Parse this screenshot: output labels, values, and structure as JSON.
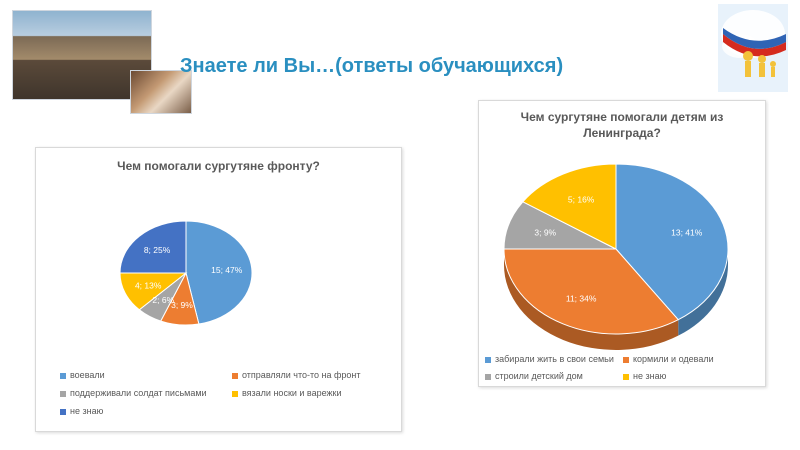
{
  "page": {
    "title": "Знаете ли Вы…(ответы обучающихся)"
  },
  "chart_data": [
    {
      "type": "pie",
      "title": "Чем помогали сургутяне фронту?",
      "slices": [
        {
          "label": "воевали",
          "value": 15,
          "percent": "47%",
          "color": "#5b9bd5"
        },
        {
          "label": "отправляли что-то на фронт",
          "value": 3,
          "percent": "9%",
          "color": "#ed7d31"
        },
        {
          "label": "поддерживали солдат письмами",
          "value": 2,
          "percent": "6%",
          "color": "#a5a5a5"
        },
        {
          "label": "вязали носки и варежки",
          "value": 4,
          "percent": "13%",
          "color": "#ffc000"
        },
        {
          "label": "не знаю",
          "value": 8,
          "percent": "25%",
          "color": "#4472c4"
        }
      ],
      "data_labels": [
        "15; 47%",
        "3; 9%",
        "2; 6%",
        "4; 13%",
        "8; 25%"
      ],
      "legend_position": "bottom"
    },
    {
      "type": "pie",
      "title": "Чем сургутяне помогали детям из Ленинграда?",
      "slices": [
        {
          "label": "забирали жить в свои семьи",
          "value": 13,
          "percent": "41%",
          "color": "#5b9bd5"
        },
        {
          "label": "кормили и одевали",
          "value": 11,
          "percent": "34%",
          "color": "#ed7d31"
        },
        {
          "label": "строили детский дом",
          "value": 3,
          "percent": "9%",
          "color": "#a5a5a5"
        },
        {
          "label": "не знаю",
          "value": 5,
          "percent": "16%",
          "color": "#ffc000"
        }
      ],
      "data_labels": [
        "13; 41%",
        "11; 34%",
        "3; 9%",
        "5; 16%"
      ],
      "legend_position": "bottom"
    }
  ]
}
